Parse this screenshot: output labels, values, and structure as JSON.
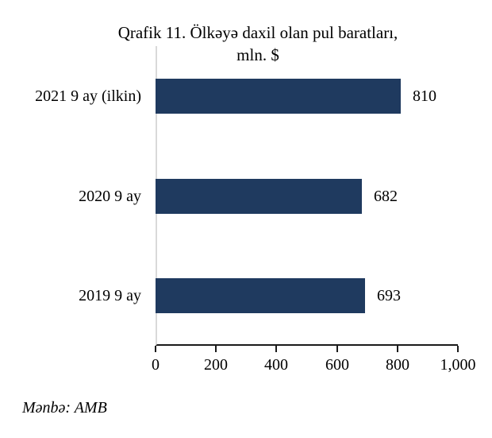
{
  "colors": {
    "bar": "#1F3A5F",
    "axis": "#1A1A1A",
    "plot_border": "#D9D9D9",
    "text": "#000000",
    "background": "#FFFFFF"
  },
  "title": {
    "line1": "Qrafik 11. Ölkəyə daxil olan pul baratları,",
    "line2": "mln. $"
  },
  "source": "Mənbə: AMB",
  "chart_data": {
    "type": "bar",
    "orientation": "horizontal",
    "title": "Qrafik 11. Ölkəyə daxil olan pul baratları, mln. $",
    "categories": [
      "2021 9 ay (ilkin)",
      "2020 9 ay",
      "2019 9 ay"
    ],
    "values": [
      810,
      682,
      693
    ],
    "value_labels": [
      "810",
      "682",
      "693"
    ],
    "x_ticks": [
      0,
      200,
      400,
      600,
      800,
      1000
    ],
    "x_tick_labels": [
      "0",
      "200",
      "400",
      "600",
      "800",
      "1,000"
    ],
    "xlim": [
      0,
      1000
    ],
    "xlabel": "",
    "ylabel": "",
    "grid": false,
    "legend": false,
    "bar_color": "#1F3A5F",
    "source": "Mənbə: AMB"
  }
}
